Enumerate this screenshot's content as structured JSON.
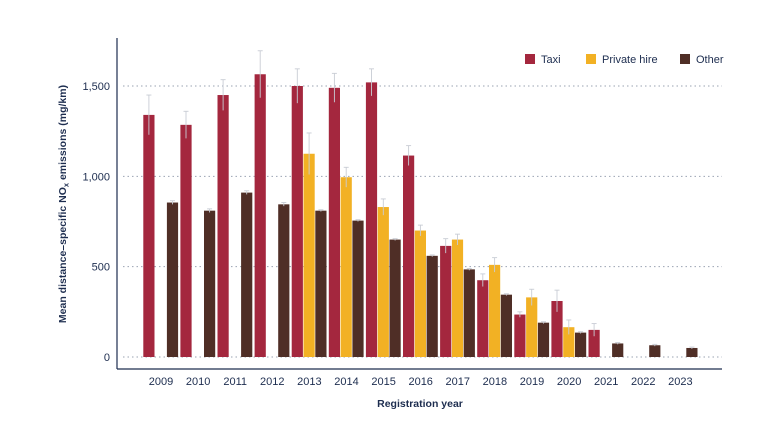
{
  "chart_data": {
    "type": "bar",
    "xlabel": "Registration year",
    "ylabel_main": "Mean distance–specific NO",
    "ylabel_sub": "x",
    "ylabel_tail": " emissions (mg/km)",
    "ylim": [
      0,
      1750
    ],
    "yticks": [
      0,
      500,
      1000,
      1500
    ],
    "ytick_labels": [
      "0",
      "500",
      "1,000",
      "1,500"
    ],
    "grid": "horizontal-dotted",
    "legend_position": "top-right",
    "categories": [
      "2009",
      "2010",
      "2011",
      "2012",
      "2013",
      "2014",
      "2015",
      "2016",
      "2017",
      "2018",
      "2019",
      "2020",
      "2021",
      "2022",
      "2023"
    ],
    "series": [
      {
        "name": "Taxi",
        "color": "#a4273e",
        "values": [
          1340,
          1285,
          1450,
          1565,
          1500,
          1490,
          1520,
          1115,
          615,
          425,
          235,
          310,
          150,
          null,
          null
        ],
        "error": [
          110,
          75,
          85,
          130,
          95,
          80,
          75,
          55,
          40,
          35,
          15,
          60,
          35,
          null,
          null
        ]
      },
      {
        "name": "Private hire",
        "color": "#f2b124",
        "values": [
          null,
          null,
          null,
          null,
          1125,
          995,
          830,
          700,
          650,
          510,
          330,
          165,
          null,
          null,
          null
        ],
        "error": [
          null,
          null,
          null,
          null,
          115,
          55,
          45,
          30,
          30,
          40,
          45,
          40,
          null,
          null,
          null
        ]
      },
      {
        "name": "Other",
        "color": "#4f2e26",
        "values": [
          855,
          810,
          910,
          845,
          810,
          755,
          650,
          560,
          485,
          345,
          190,
          135,
          75,
          65,
          50
        ],
        "error": [
          10,
          10,
          10,
          10,
          5,
          5,
          5,
          5,
          5,
          5,
          5,
          5,
          5,
          5,
          5
        ]
      }
    ]
  }
}
